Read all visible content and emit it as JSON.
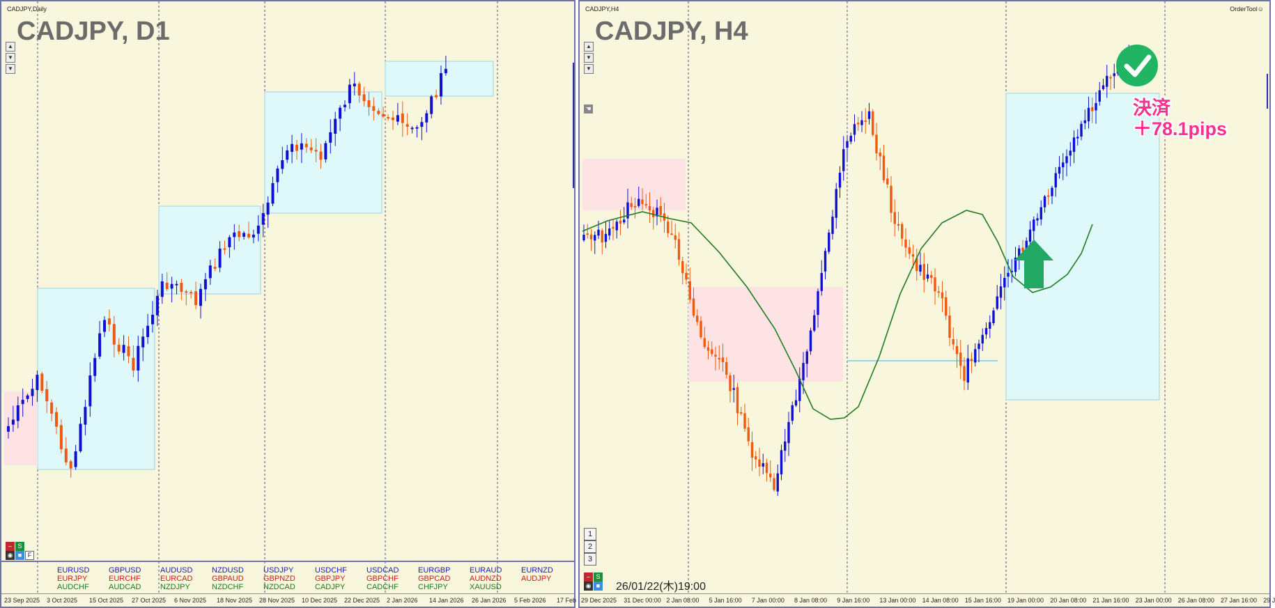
{
  "left": {
    "symbol_label": "CADJPY,Daily",
    "big_title": "CADJPY, D1",
    "scroll_buttons": [
      "▲",
      "▼",
      "▼"
    ],
    "toolbar": {
      "minus": "–",
      "s": "S",
      "f": "F"
    },
    "x_ticks": [
      "23 Sep 2025",
      "3 Oct 2025",
      "15 Oct 2025",
      "27 Oct 2025",
      "6 Nov 2025",
      "18 Nov 2025",
      "28 Nov 2025",
      "10 Dec 2025",
      "22 Dec 2025",
      "2 Jan 2026",
      "14 Jan 2026",
      "26 Jan 2026",
      "5 Feb 2026",
      "17 Feb"
    ],
    "pair_columns": [
      {
        "items": [
          {
            "t": "EURUSD",
            "c": "#1a1ab0"
          },
          {
            "t": "EURJPY",
            "c": "#d01818"
          },
          {
            "t": "AUDCHF",
            "c": "#1a7a1a"
          }
        ]
      },
      {
        "items": [
          {
            "t": "GBPUSD",
            "c": "#1a1ab0"
          },
          {
            "t": "EURCHF",
            "c": "#d01818"
          },
          {
            "t": "AUDCAD",
            "c": "#1a7a1a"
          }
        ]
      },
      {
        "items": [
          {
            "t": "AUDUSD",
            "c": "#1a1ab0"
          },
          {
            "t": "EURCAD",
            "c": "#d01818"
          },
          {
            "t": "NZDJPY",
            "c": "#1a7a1a"
          }
        ]
      },
      {
        "items": [
          {
            "t": "NZDUSD",
            "c": "#1a1ab0"
          },
          {
            "t": "GBPAUD",
            "c": "#d01818"
          },
          {
            "t": "NZDCHF",
            "c": "#1a7a1a"
          }
        ]
      },
      {
        "items": [
          {
            "t": "USDJPY",
            "c": "#1a1ab0"
          },
          {
            "t": "GBPNZD",
            "c": "#d01818"
          },
          {
            "t": "NZDCAD",
            "c": "#1a7a1a"
          }
        ]
      },
      {
        "items": [
          {
            "t": "USDCHF",
            "c": "#1a1ab0"
          },
          {
            "t": "GBPJPY",
            "c": "#d01818"
          },
          {
            "t": "CADJPY",
            "c": "#1a7a1a"
          }
        ]
      },
      {
        "items": [
          {
            "t": "USDCAD",
            "c": "#1a1ab0"
          },
          {
            "t": "GBPCHF",
            "c": "#d01818"
          },
          {
            "t": "CADCHF",
            "c": "#1a7a1a"
          }
        ]
      },
      {
        "items": [
          {
            "t": "EURGBP",
            "c": "#1a1ab0"
          },
          {
            "t": "GBPCAD",
            "c": "#d01818"
          },
          {
            "t": "CHFJPY",
            "c": "#1a7a1a"
          }
        ]
      },
      {
        "items": [
          {
            "t": "EURAUD",
            "c": "#1a1ab0"
          },
          {
            "t": "AUDNZD",
            "c": "#d01818"
          },
          {
            "t": "XAUUSD",
            "c": "#1a7a1a"
          }
        ]
      },
      {
        "items": [
          {
            "t": "EURNZD",
            "c": "#1a1ab0"
          },
          {
            "t": "AUDJPY",
            "c": "#d01818"
          }
        ]
      }
    ]
  },
  "right": {
    "symbol_label": "CADJPY,H4",
    "big_title": "CADJPY, H4",
    "order_tool": "OrderTool",
    "scroll_buttons": [
      "▲",
      "▼",
      "▼"
    ],
    "toolbar": {
      "minus": "–",
      "s": "S"
    },
    "number_buttons": [
      "1",
      "2",
      "3"
    ],
    "timestamp": "26/01/22(木)19:00",
    "result_line1": "決済",
    "result_line2": "＋78.1pips",
    "x_ticks": [
      "29 Dec 2025",
      "31 Dec 00:00",
      "2 Jan 08:00",
      "5 Jan 16:00",
      "7 Jan 00:00",
      "8 Jan 08:00",
      "9 Jan 16:00",
      "13 Jan 00:00",
      "14 Jan 08:00",
      "15 Jan 16:00",
      "19 Jan 00:00",
      "20 Jan 08:00",
      "21 Jan 16:00",
      "23 Jan 00:00",
      "26 Jan 08:00",
      "27 Jan 16:00",
      "29 J"
    ]
  },
  "colors": {
    "background": "#f8f6dc",
    "bull": "#1010d0",
    "bear": "#f05a10",
    "box_cyan": "#dff8fa",
    "box_pink": "#fde3e3",
    "ma_line": "#1f7a1f",
    "arrow": "#22a862",
    "check": "#21b462",
    "result": "#ff2f8e"
  }
}
